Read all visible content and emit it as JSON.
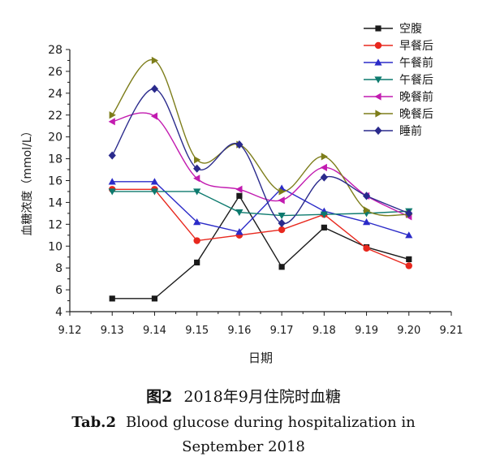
{
  "chart_data": {
    "type": "line",
    "xlabel": "日期",
    "ylabel": "血糖浓度（mmol/L）",
    "xlim": [
      9.12,
      9.21
    ],
    "ylim": [
      4,
      28
    ],
    "x_ticks": [
      "9.12",
      "9.13",
      "9.14",
      "9.15",
      "9.16",
      "9.17",
      "9.18",
      "9.19",
      "9.20",
      "9.21"
    ],
    "y_ticks": [
      "4",
      "6",
      "8",
      "10",
      "12",
      "14",
      "16",
      "18",
      "20",
      "22",
      "24",
      "26",
      "28"
    ],
    "grid": false,
    "legend_position": "top-right",
    "x": [
      9.13,
      9.14,
      9.15,
      9.16,
      9.17,
      9.18,
      9.19,
      9.2
    ],
    "series": [
      {
        "name": "空腹",
        "color": "#1a1a1a",
        "marker": "square",
        "smooth": false,
        "values": [
          5.2,
          5.2,
          8.5,
          14.6,
          8.1,
          11.7,
          9.9,
          8.8
        ]
      },
      {
        "name": "早餐后",
        "color": "#e8281e",
        "marker": "circle",
        "smooth": false,
        "values": [
          15.2,
          15.2,
          10.5,
          11.0,
          11.5,
          12.9,
          9.8,
          8.2
        ]
      },
      {
        "name": "午餐前",
        "color": "#2b2bc8",
        "marker": "triangle-up",
        "smooth": false,
        "values": [
          15.9,
          15.9,
          12.2,
          11.3,
          15.3,
          13.2,
          12.2,
          11.0
        ]
      },
      {
        "name": "午餐后",
        "color": "#0d7a6e",
        "marker": "triangle-down",
        "smooth": false,
        "values": [
          15.0,
          15.0,
          15.0,
          13.1,
          12.8,
          12.9,
          13.0,
          13.2
        ]
      },
      {
        "name": "晚餐前",
        "color": "#c21bb0",
        "marker": "triangle-left",
        "smooth": true,
        "values": [
          21.4,
          21.9,
          16.2,
          15.2,
          14.2,
          17.2,
          14.6,
          12.7
        ]
      },
      {
        "name": "晚餐后",
        "color": "#7d7d1a",
        "marker": "triangle-right",
        "smooth": true,
        "values": [
          22.0,
          27.0,
          17.9,
          19.3,
          15.0,
          18.2,
          13.3,
          12.9
        ]
      },
      {
        "name": "睡前",
        "color": "#2a2a8c",
        "marker": "diamond",
        "smooth": true,
        "values": [
          18.3,
          24.4,
          17.1,
          19.3,
          12.1,
          16.3,
          14.6,
          13.0
        ]
      }
    ]
  },
  "caption": {
    "cn_label": "图2",
    "cn_text": "2018年9月住院时血糖",
    "en_label": "Tab.2",
    "en_text_line1": "Blood glucose during hospitalization in",
    "en_text_line2": "September 2018"
  }
}
